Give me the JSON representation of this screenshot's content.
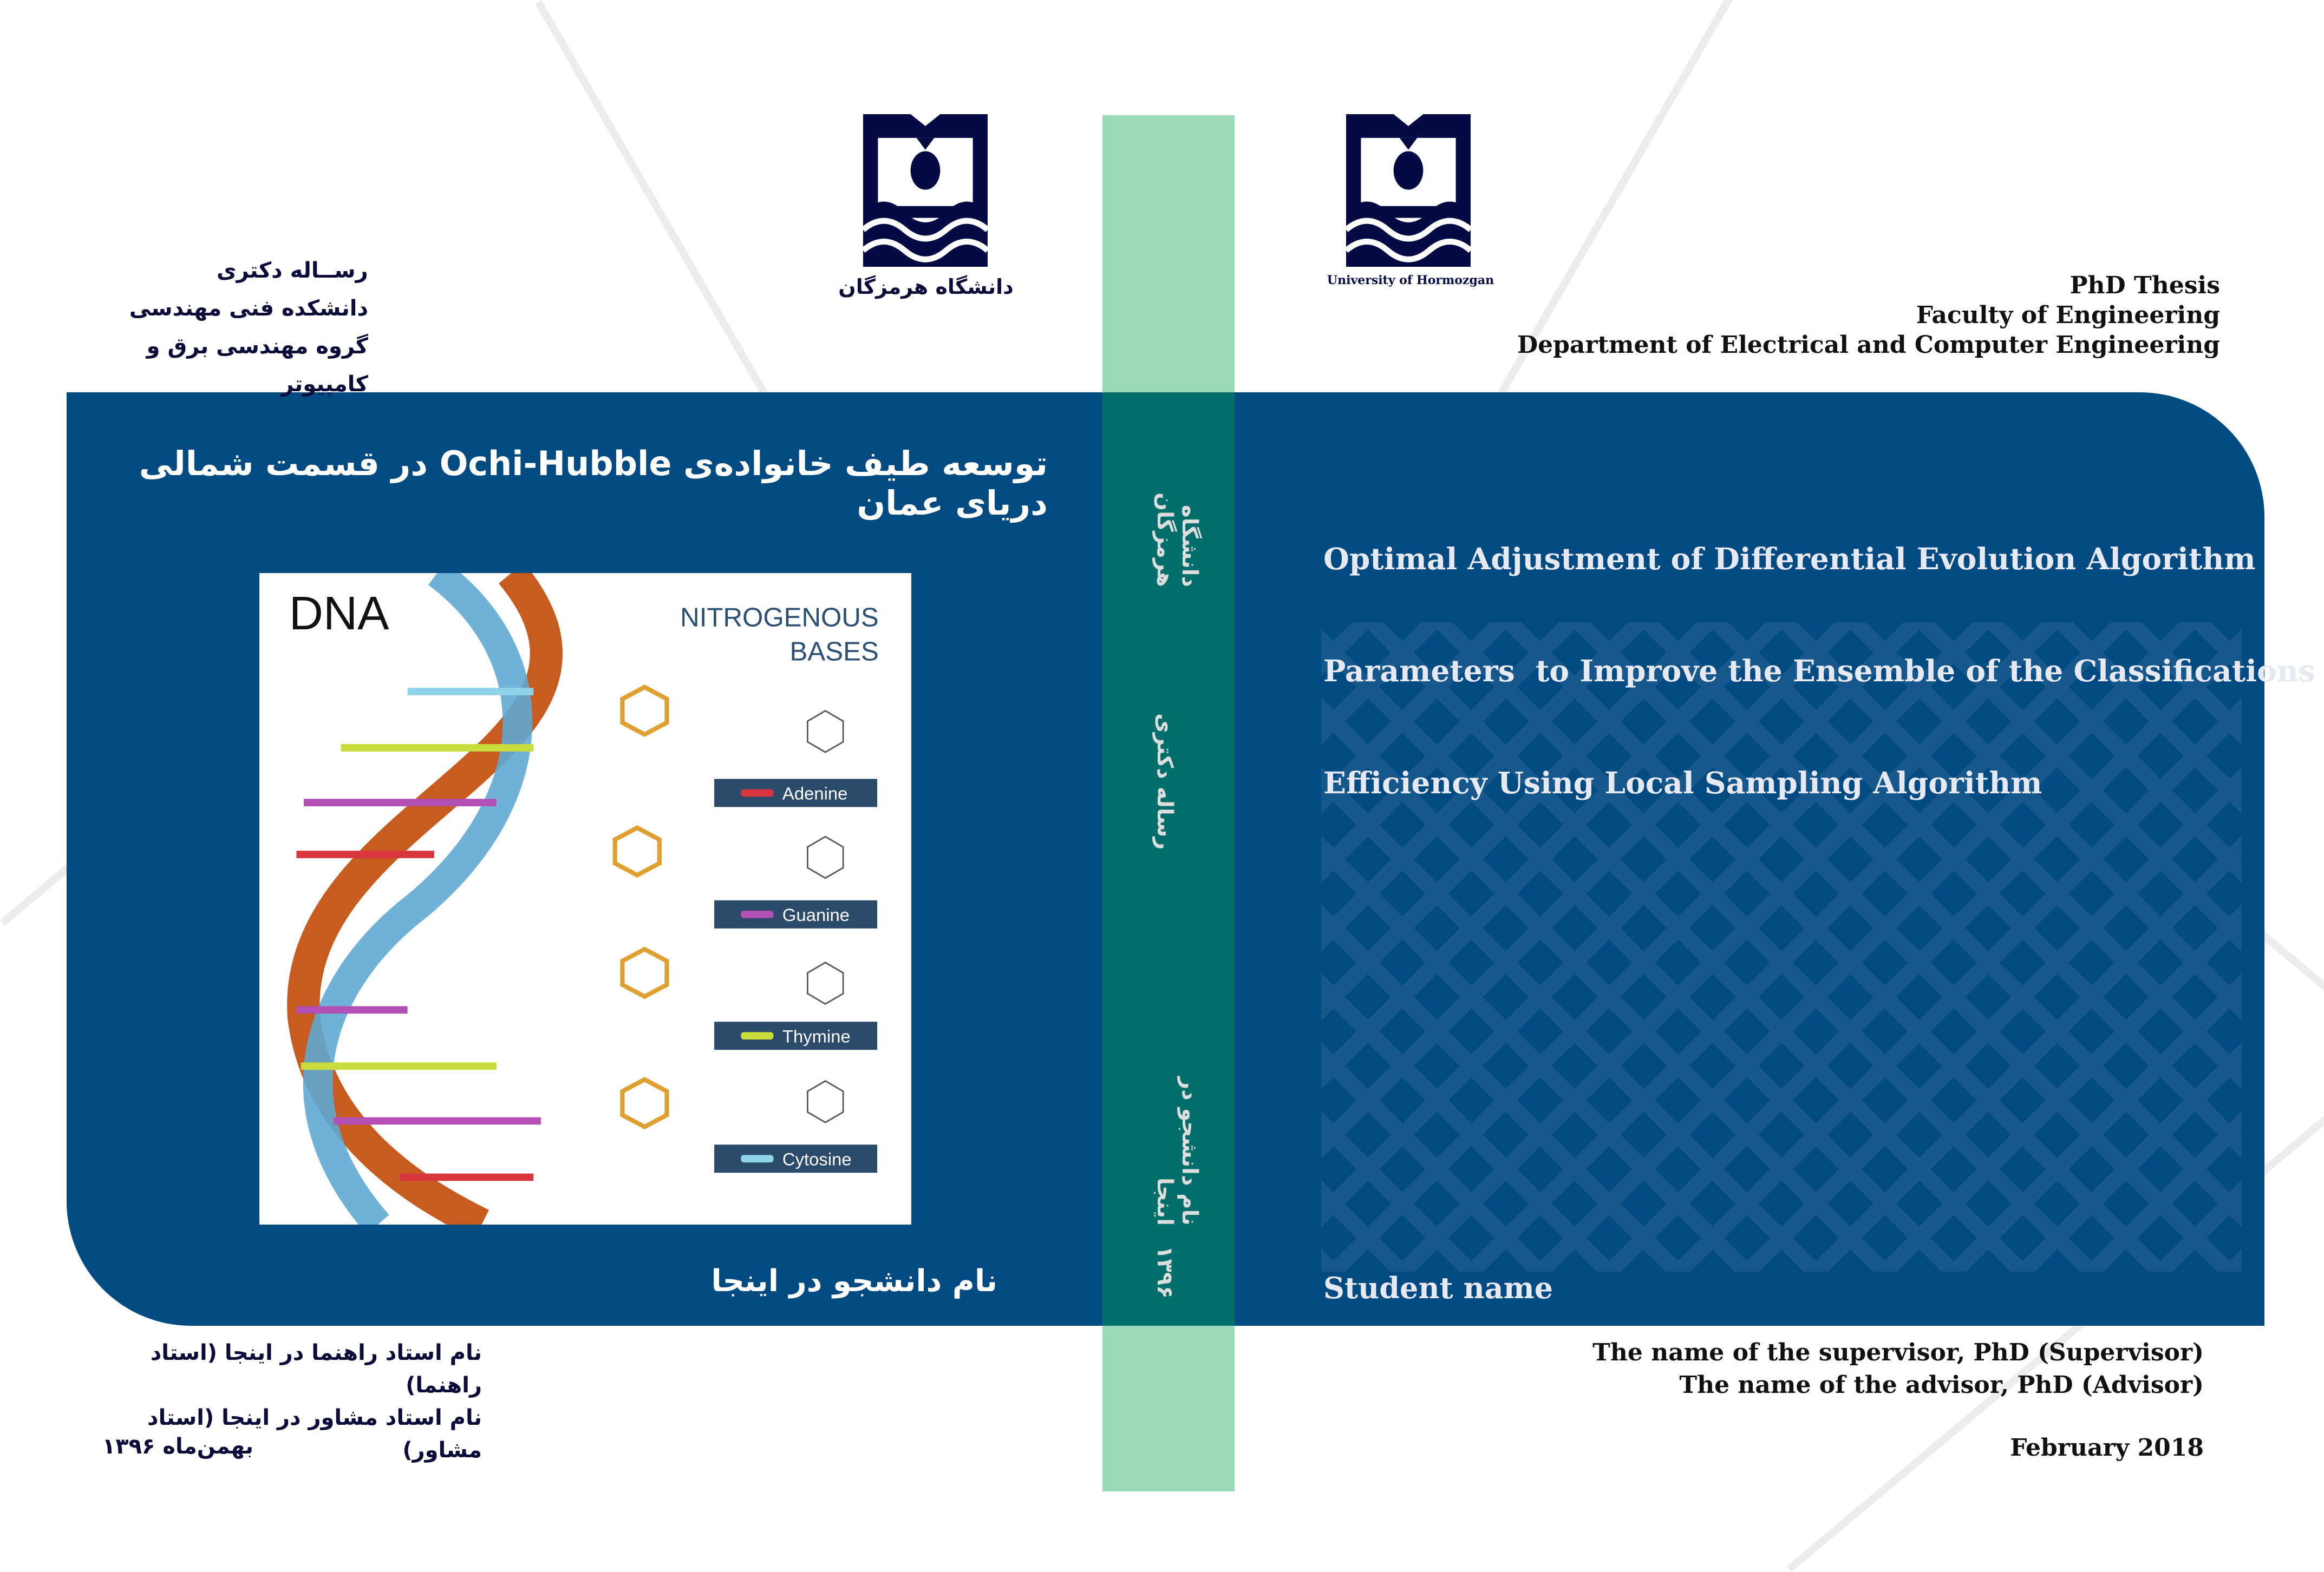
{
  "persian_header": {
    "lines": [
      "رســاله دکتری",
      "دانشکده فنی مهندسی",
      "گروه مهندسی برق و کامپیوتر"
    ],
    "university": "دانشگاه هرمزگان"
  },
  "english_header": {
    "university": "University of Hormozgan",
    "lines": [
      "PhD Thesis",
      "Faculty of Engineering",
      "Department of Electrical and Computer Engineering"
    ]
  },
  "front_persian": {
    "title": "توسعه طیف خانواده‌ی Ochi-Hubble در قسمت شمالی دریای عمان",
    "student": "نام دانشجو در اینجا",
    "supervisor": "نام استاد راهنما در اینجا (استاد راهنما)",
    "advisor": "نام استاد مشاور در اینجا (استاد مشاور)",
    "date": "بهمن‌ماه ۱۳۹۶"
  },
  "dna_figure": {
    "title": "DNA",
    "subtitle_line1": "NITROGENOUS",
    "subtitle_line2": "BASES",
    "bases": [
      "Adenine",
      "Guanine",
      "Thymine",
      "Cytosine"
    ],
    "base_colors": [
      "#d9363e",
      "#b34fb5",
      "#c8dc3c",
      "#8fd3e8"
    ]
  },
  "spine": {
    "university": "دانشگاه هرمزگان",
    "type": "رساله دکتری",
    "student": "نام دانشجو در اینجا",
    "year": "۱۳۹۶"
  },
  "front_english": {
    "title_lines": [
      "Optimal Adjustment of Differential Evolution Algorithm",
      "Parameters  to Improve the Ensemble of the Classifications",
      "Efficiency Using Local Sampling Algorithm"
    ],
    "student": "Student name",
    "supervisor": "The name of the supervisor, PhD (Supervisor)",
    "advisor": "The name of the advisor, PhD (Advisor)",
    "date": "February 2018"
  },
  "colors": {
    "band": "#024a82",
    "spine": "#9bdab9",
    "spine_band": "#006f6b",
    "logo": "#050a45"
  }
}
